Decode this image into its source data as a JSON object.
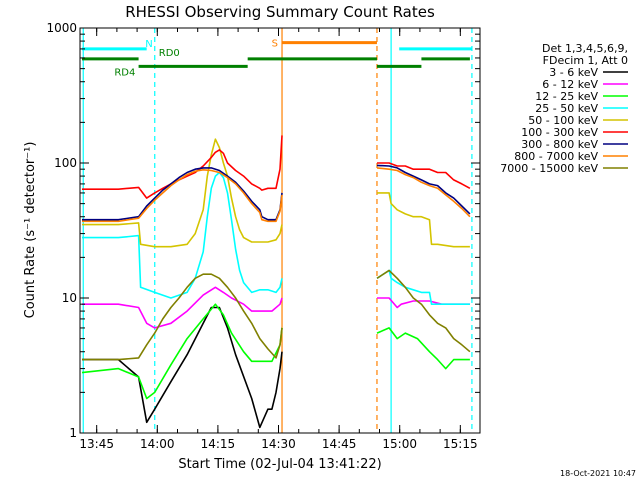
{
  "chart_data": {
    "type": "line",
    "title": "RHESSI Observing Summary Count Rates",
    "xlabel": "Start Time (02-Jul-04 13:41:22)",
    "ylabel": "Count Rate (s⁻¹ detector⁻¹)",
    "y_scale": "log",
    "ylim": [
      1,
      1000
    ],
    "xlim_minutes": [
      -0.5,
      98.5
    ],
    "x_ticks": [
      {
        "label": "13:45",
        "minute": 3.63
      },
      {
        "label": "14:00",
        "minute": 18.63
      },
      {
        "label": "14:15",
        "minute": 33.63
      },
      {
        "label": "14:30",
        "minute": 48.63
      },
      {
        "label": "14:45",
        "minute": 63.63
      },
      {
        "label": "15:00",
        "minute": 78.63
      },
      {
        "label": "15:15",
        "minute": 93.63
      }
    ],
    "y_ticks": [
      {
        "label": "1",
        "value": 1
      },
      {
        "label": "10",
        "value": 10
      },
      {
        "label": "100",
        "value": 100
      },
      {
        "label": "1000",
        "value": 1000
      }
    ],
    "legend_header": [
      "Det 1,3,4,5,6,9,",
      "FDecim 1, Att 0"
    ],
    "legend_position": "right",
    "data_gap_minutes": [
      49.5,
      73.0
    ],
    "series": [
      {
        "name": "3 - 6 keV",
        "color": "#000000",
        "x": [
          0,
          9,
          14,
          16,
          18,
          22,
          26,
          30,
          32,
          34,
          36,
          38,
          42,
          44,
          46,
          47,
          48,
          49,
          49.5
        ],
        "y": [
          3.5,
          3.5,
          2.6,
          1.2,
          1.5,
          2.4,
          3.8,
          6.5,
          8.5,
          8.5,
          6.0,
          3.8,
          1.8,
          1.1,
          1.5,
          1.5,
          2.0,
          3.0,
          4.0
        ]
      },
      {
        "name": "6 - 12 keV",
        "color": "#ff00ff",
        "x": [
          0,
          9,
          14,
          16,
          18,
          22,
          26,
          30,
          33,
          35,
          37,
          40,
          42,
          44,
          47,
          49,
          49.5,
          73,
          76,
          78,
          79,
          82,
          86,
          89,
          92,
          96
        ],
        "y": [
          9.0,
          9.0,
          8.5,
          6.5,
          6.0,
          6.5,
          8.0,
          10.5,
          12.0,
          11.0,
          10.0,
          9.0,
          8.0,
          8.0,
          8.0,
          9.0,
          10.0,
          10.0,
          10.0,
          8.5,
          9.0,
          9.5,
          9.5,
          9.0,
          9.0,
          9.0
        ]
      },
      {
        "name": "12 - 25 keV",
        "color": "#00ff00",
        "x": [
          0,
          9,
          14,
          16,
          18,
          22,
          26,
          30,
          33,
          35,
          37,
          40,
          42,
          44,
          47,
          49,
          49.5,
          73,
          76,
          78,
          80,
          83,
          86,
          88,
          90,
          92,
          96
        ],
        "y": [
          2.8,
          3.0,
          2.6,
          1.8,
          2.0,
          3.2,
          5.0,
          7.0,
          9.0,
          7.5,
          5.5,
          4.0,
          3.4,
          3.4,
          3.4,
          4.5,
          6.0,
          5.5,
          6.0,
          5.0,
          5.5,
          5.0,
          4.0,
          3.5,
          3.0,
          3.5,
          3.5
        ]
      },
      {
        "name": "25 - 50 keV",
        "color": "#00ffff",
        "x": [
          0,
          9,
          14,
          14.5,
          18,
          22,
          26,
          28,
          30,
          31,
          32,
          33,
          34,
          35,
          36,
          37,
          38,
          39,
          40,
          42,
          44,
          46,
          48,
          49,
          49.5,
          73,
          76,
          76.5,
          78,
          80,
          82,
          84,
          86,
          86.5,
          88,
          92,
          96
        ],
        "y": [
          28,
          28,
          29,
          12,
          11,
          10,
          11,
          14,
          22,
          40,
          65,
          80,
          85,
          78,
          60,
          38,
          23,
          16,
          13,
          11,
          11.5,
          11.5,
          11,
          12,
          14,
          14,
          16,
          14,
          13,
          12,
          11.5,
          11,
          11,
          9,
          9,
          9,
          9
        ]
      },
      {
        "name": "50 - 100 keV",
        "color": "#d4c400",
        "x": [
          0,
          9,
          14,
          14.5,
          18,
          22,
          26,
          28,
          30,
          31,
          32,
          33,
          34,
          35,
          36,
          37,
          38,
          39,
          40,
          42,
          44,
          46,
          48,
          49,
          49.5,
          73,
          76,
          76.5,
          78,
          80,
          82,
          84,
          86,
          86.5,
          88,
          92,
          96
        ],
        "y": [
          35,
          35,
          36,
          25,
          24,
          24,
          25,
          30,
          45,
          80,
          115,
          150,
          130,
          100,
          80,
          55,
          40,
          32,
          28,
          26,
          26,
          26,
          27,
          30,
          35,
          60,
          60,
          50,
          45,
          42,
          40,
          40,
          38,
          25,
          25,
          24,
          24
        ]
      },
      {
        "name": "100 - 300 keV",
        "color": "#ff0000",
        "x": [
          0,
          9,
          14,
          16,
          18,
          20,
          22,
          24,
          26,
          28,
          30,
          32,
          33,
          34,
          35,
          36,
          38,
          40,
          42,
          44,
          44.5,
          46,
          48,
          49,
          49.5,
          73,
          76,
          78,
          80,
          82,
          84,
          86,
          88,
          90,
          92,
          94,
          96
        ],
        "y": [
          64,
          64,
          66,
          55,
          60,
          65,
          70,
          75,
          80,
          85,
          95,
          110,
          120,
          125,
          118,
          100,
          88,
          80,
          70,
          65,
          63,
          65,
          65,
          90,
          160,
          100,
          100,
          95,
          95,
          90,
          90,
          90,
          85,
          85,
          75,
          70,
          65
        ]
      },
      {
        "name": "300 - 800 keV",
        "color": "#000080",
        "x": [
          0,
          9,
          14,
          16,
          18,
          20,
          22,
          24,
          26,
          28,
          30,
          32,
          34,
          36,
          38,
          40,
          42,
          44,
          44.5,
          46,
          48,
          49,
          49.5,
          73,
          76,
          78,
          80,
          82,
          84,
          86,
          88,
          90,
          92,
          94,
          96
        ],
        "y": [
          38,
          38,
          40,
          48,
          55,
          63,
          70,
          78,
          85,
          90,
          92,
          92,
          88,
          80,
          72,
          62,
          52,
          45,
          40,
          38,
          38,
          45,
          60,
          96,
          95,
          92,
          85,
          80,
          75,
          70,
          68,
          60,
          55,
          48,
          42
        ]
      },
      {
        "name": "800 - 7000 keV",
        "color": "#ff8000",
        "x": [
          0,
          9,
          14,
          16,
          18,
          20,
          22,
          24,
          26,
          28,
          30,
          32,
          34,
          36,
          38,
          40,
          42,
          44,
          44.5,
          46,
          48,
          49,
          49.5,
          73,
          76,
          78,
          80,
          82,
          84,
          86,
          88,
          90,
          92,
          94,
          96
        ],
        "y": [
          37,
          37,
          39,
          46,
          53,
          60,
          68,
          75,
          82,
          87,
          89,
          88,
          85,
          78,
          70,
          60,
          50,
          43,
          38,
          37,
          37,
          44,
          58,
          92,
          90,
          88,
          82,
          78,
          72,
          68,
          65,
          58,
          52,
          46,
          40
        ]
      },
      {
        "name": "7000 - 15000 keV",
        "color": "#808000",
        "x": [
          0,
          9,
          14,
          16,
          18,
          20,
          22,
          24,
          26,
          28,
          30,
          32,
          34,
          36,
          38,
          40,
          42,
          44,
          46,
          48,
          49,
          49.5,
          73,
          76,
          78,
          80,
          82,
          84,
          86,
          88,
          90,
          92,
          94,
          96
        ],
        "y": [
          3.5,
          3.5,
          3.6,
          4.5,
          5.5,
          7.0,
          8.5,
          10,
          12,
          14,
          15,
          15,
          14,
          12,
          10,
          8.0,
          6.5,
          5.0,
          4.2,
          3.6,
          4.5,
          6.0,
          14,
          16,
          14,
          12,
          10,
          9.0,
          7.5,
          6.5,
          6.0,
          5.0,
          4.5,
          4.0
        ]
      }
    ],
    "flags": [
      {
        "label": "N",
        "color": "#00ffff",
        "level": 700,
        "segments": [
          [
            0,
            16
          ]
        ]
      },
      {
        "label": "",
        "color": "#00ffff",
        "level": 700,
        "segments": [
          [
            78.5,
            96.5
          ]
        ]
      },
      {
        "label": "S",
        "color": "#ff8000",
        "level": 780,
        "segments": [
          [
            49.5,
            73.0
          ]
        ]
      },
      {
        "label": "RD0",
        "color": "#008000",
        "level": 590,
        "segments": [
          [
            0,
            14
          ],
          [
            41,
            73
          ],
          [
            84,
            96
          ]
        ]
      },
      {
        "label": "RD4",
        "color": "#008000",
        "level": 520,
        "segments": [
          [
            14,
            41
          ],
          [
            73,
            84
          ]
        ]
      }
    ],
    "vertical_lines": [
      {
        "minute": 0.3,
        "color": "#00ffff",
        "style": "solid"
      },
      {
        "minute": 18.0,
        "color": "#00ffff",
        "style": "dashed"
      },
      {
        "minute": 49.5,
        "color": "#ff8000",
        "style": "solid"
      },
      {
        "minute": 73.0,
        "color": "#ff8000",
        "style": "dashed"
      },
      {
        "minute": 76.5,
        "color": "#00ffff",
        "style": "solid"
      },
      {
        "minute": 96.5,
        "color": "#00ffff",
        "style": "dashed"
      }
    ]
  },
  "footer": {
    "timestamp": "18-Oct-2021 10:47"
  }
}
